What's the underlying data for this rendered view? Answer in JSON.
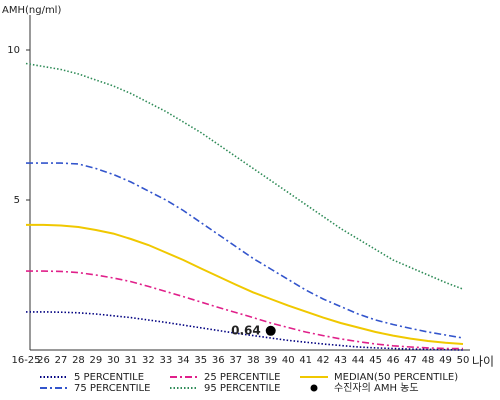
{
  "chart_data": {
    "type": "line",
    "y_label": "AMH(ng/ml)",
    "x_label": "나이",
    "categories": [
      "16-25",
      "26",
      "27",
      "28",
      "29",
      "30",
      "31",
      "32",
      "33",
      "34",
      "35",
      "36",
      "37",
      "38",
      "39",
      "40",
      "41",
      "42",
      "43",
      "44",
      "45",
      "46",
      "47",
      "48",
      "49",
      "50"
    ],
    "ylim": [
      0,
      11
    ],
    "yticks": [
      5,
      10
    ],
    "series": [
      {
        "name": "5 PERCENTILE",
        "color": "#000080",
        "dash": "dotted",
        "values": [
          1.27,
          1.27,
          1.26,
          1.24,
          1.2,
          1.14,
          1.08,
          1.0,
          0.92,
          0.83,
          0.74,
          0.65,
          0.56,
          0.48,
          0.4,
          0.32,
          0.26,
          0.2,
          0.15,
          0.1,
          0.07,
          0.05,
          0.03,
          0.02,
          0.01,
          0.0
        ]
      },
      {
        "name": "25 PERCENTILE",
        "color": "#e0208a",
        "dash": "dashdot",
        "values": [
          2.63,
          2.63,
          2.62,
          2.58,
          2.5,
          2.4,
          2.28,
          2.12,
          1.95,
          1.78,
          1.6,
          1.42,
          1.25,
          1.08,
          0.9,
          0.75,
          0.6,
          0.48,
          0.37,
          0.28,
          0.2,
          0.14,
          0.1,
          0.07,
          0.05,
          0.05
        ]
      },
      {
        "name": "MEDIAN(50 PERCENTILE)",
        "color": "#f0c800",
        "dash": "solid",
        "values": [
          4.17,
          4.17,
          4.15,
          4.1,
          4.0,
          3.88,
          3.7,
          3.5,
          3.25,
          3.0,
          2.72,
          2.45,
          2.18,
          1.92,
          1.7,
          1.48,
          1.28,
          1.08,
          0.9,
          0.75,
          0.6,
          0.48,
          0.38,
          0.3,
          0.24,
          0.2
        ]
      },
      {
        "name": "75 PERCENTILE",
        "color": "#3355cc",
        "dash": "dashdot",
        "values": [
          6.23,
          6.23,
          6.23,
          6.2,
          6.05,
          5.85,
          5.6,
          5.3,
          5.0,
          4.65,
          4.25,
          3.85,
          3.45,
          3.05,
          2.7,
          2.35,
          2.0,
          1.7,
          1.45,
          1.2,
          1.0,
          0.85,
          0.72,
          0.6,
          0.5,
          0.4
        ]
      },
      {
        "name": "95 PERCENTILE",
        "color": "#2e8b57",
        "dash": "dotted",
        "values": [
          9.55,
          9.45,
          9.35,
          9.2,
          9.0,
          8.8,
          8.55,
          8.25,
          7.95,
          7.6,
          7.25,
          6.85,
          6.45,
          6.05,
          5.65,
          5.25,
          4.85,
          4.45,
          4.05,
          3.7,
          3.35,
          3.0,
          2.75,
          2.5,
          2.25,
          2.03
        ]
      }
    ],
    "patient": {
      "name": "수진자의 AMH 농도",
      "category": "39",
      "value": 0.64,
      "color": "#000000"
    }
  }
}
